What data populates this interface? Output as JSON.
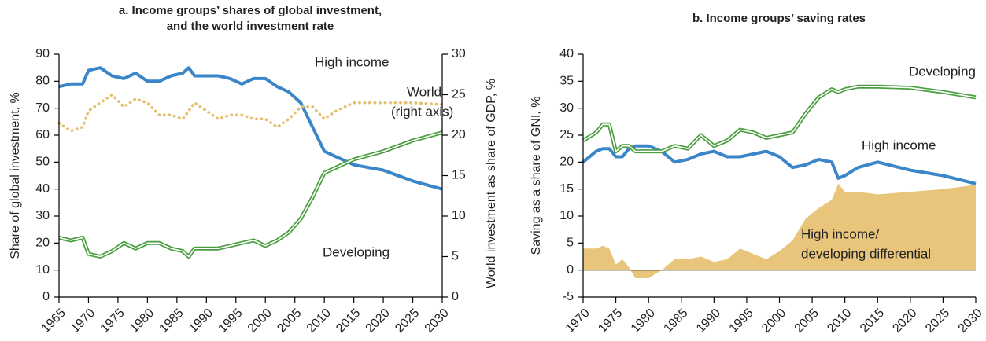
{
  "chart_data": [
    {
      "type": "line",
      "title": [
        "a.  Income groups’ shares of global investment,",
        "and the world investment rate"
      ],
      "y_label": "Share of global investment, %",
      "y2_label": "World investment as share of GDP, %",
      "x": [
        1965,
        1967,
        1969,
        1970,
        1972,
        1974,
        1976,
        1978,
        1980,
        1982,
        1984,
        1986,
        1987,
        1988,
        1990,
        1992,
        1994,
        1996,
        1998,
        2000,
        2002,
        2004,
        2006,
        2008,
        2010,
        2012,
        2015,
        2020,
        2025,
        2030
      ],
      "xlim": [
        1965,
        2030
      ],
      "xticks": [
        1965,
        1970,
        1975,
        1980,
        1985,
        1990,
        1995,
        2000,
        2005,
        2010,
        2015,
        2020,
        2025,
        2030
      ],
      "ylim": [
        0,
        90
      ],
      "yticks": [
        0,
        10,
        20,
        30,
        40,
        50,
        60,
        70,
        80,
        90
      ],
      "y2lim": [
        0,
        30
      ],
      "y2ticks": [
        0,
        5,
        10,
        15,
        20,
        25,
        30
      ],
      "series": [
        {
          "name": "High income",
          "color": "#3a86c8",
          "style": "solid",
          "values": [
            78,
            79,
            79,
            84,
            85,
            82,
            81,
            83,
            80,
            80,
            82,
            83,
            85,
            82,
            82,
            82,
            81,
            79,
            81,
            81,
            78,
            76,
            72,
            63,
            54,
            52,
            49,
            47,
            43,
            40
          ]
        },
        {
          "name": "Developing",
          "color": "#4a9e3f",
          "style": "double",
          "values": [
            22,
            21,
            22,
            16,
            15,
            17,
            20,
            18,
            20,
            20,
            18,
            17,
            15,
            18,
            18,
            18,
            19,
            20,
            21,
            19,
            21,
            24,
            29,
            37,
            46,
            48,
            51,
            54,
            58,
            61
          ]
        },
        {
          "name": "World",
          "color": "#e6bf6e",
          "style": "dotted",
          "axis": "y2",
          "annotation": "(right axis)",
          "values": [
            21.5,
            20.5,
            21,
            23,
            24,
            25,
            23.5,
            24.5,
            24,
            22.5,
            22.5,
            22,
            23,
            24,
            23,
            22,
            22.5,
            22.5,
            22,
            22,
            21,
            22,
            23.5,
            23.5,
            22,
            23,
            24,
            24,
            24,
            23.8
          ]
        }
      ]
    },
    {
      "type": "line",
      "title": [
        "b.  Income groups’ saving rates"
      ],
      "y_label": "Saving as a share of GNI, %",
      "x": [
        1970,
        1972,
        1973,
        1974,
        1975,
        1976,
        1977,
        1978,
        1980,
        1982,
        1984,
        1986,
        1988,
        1990,
        1992,
        1994,
        1996,
        1998,
        2000,
        2002,
        2004,
        2006,
        2008,
        2009,
        2010,
        2012,
        2015,
        2020,
        2025,
        2030
      ],
      "xlim": [
        1970,
        2030
      ],
      "xticks": [
        1970,
        1975,
        1980,
        1985,
        1990,
        1995,
        2000,
        2005,
        2010,
        2015,
        2020,
        2025,
        2030
      ],
      "ylim": [
        -5,
        40
      ],
      "yticks": [
        -5,
        0,
        5,
        10,
        15,
        20,
        25,
        30,
        35,
        40
      ],
      "zero_line": true,
      "series": [
        {
          "label_lines": [
            "High income/",
            "developing differential"
          ],
          "color": "#e8c57a",
          "style": "area",
          "values": [
            4,
            4,
            4.5,
            4,
            1,
            2,
            0.5,
            -1.5,
            -1.5,
            0,
            2,
            2,
            2.5,
            1.5,
            2,
            4,
            3,
            2,
            3.5,
            5.5,
            9.5,
            11.5,
            13,
            16,
            14.5,
            14.5,
            14,
            14.5,
            15,
            15.8
          ]
        },
        {
          "name": "High income",
          "color": "#3a86c8",
          "style": "solid",
          "values": [
            20,
            22,
            22.5,
            22.5,
            21,
            21,
            22.5,
            23,
            23,
            22,
            20,
            20.5,
            21.5,
            22,
            21,
            21,
            21.5,
            22,
            21,
            19,
            19.5,
            20.5,
            20,
            17,
            17.5,
            19,
            20,
            18.5,
            17.5,
            16
          ]
        },
        {
          "name": "Developing",
          "color": "#4a9e3f",
          "style": "double",
          "values": [
            24,
            25.5,
            27,
            27,
            22,
            23,
            23,
            22,
            22,
            22,
            23,
            22.5,
            25,
            23,
            24,
            26,
            25.5,
            24.5,
            25,
            25.5,
            29,
            32,
            33.5,
            33,
            33.5,
            34,
            34,
            33.8,
            33,
            32
          ]
        }
      ]
    }
  ]
}
